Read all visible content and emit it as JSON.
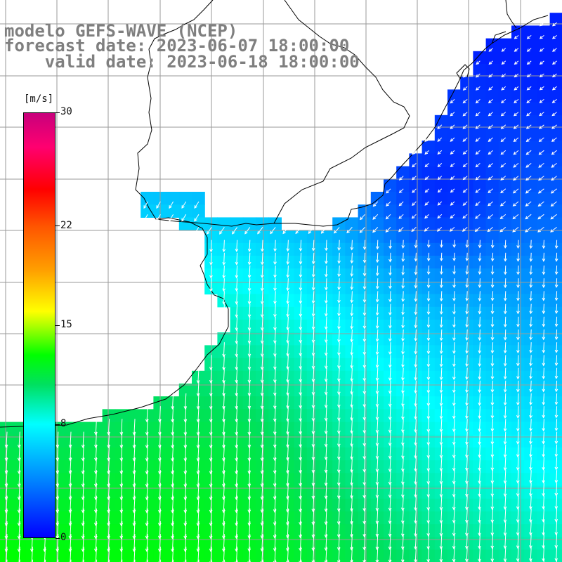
{
  "title": {
    "line1": "modelo GEFS-WAVE (NCEP)",
    "line2": "forecast date: 2023-06-07 18:00:00",
    "line3": "valid date: 2023-06-18 18:00:00"
  },
  "colorbar": {
    "unit": "[m/s]",
    "min": 0,
    "max": 30,
    "ticks": [
      {
        "value": 0,
        "label": "0"
      },
      {
        "value": 8,
        "label": "8"
      },
      {
        "value": 15,
        "label": "15"
      },
      {
        "value": 22,
        "label": "22"
      },
      {
        "value": 30,
        "label": "30"
      }
    ]
  },
  "colors": {
    "land": "#ffffff",
    "grid": "#9a9a9a",
    "coast": "#000000",
    "arrow": "#ffffff",
    "title": "#7f7f7f"
  }
}
